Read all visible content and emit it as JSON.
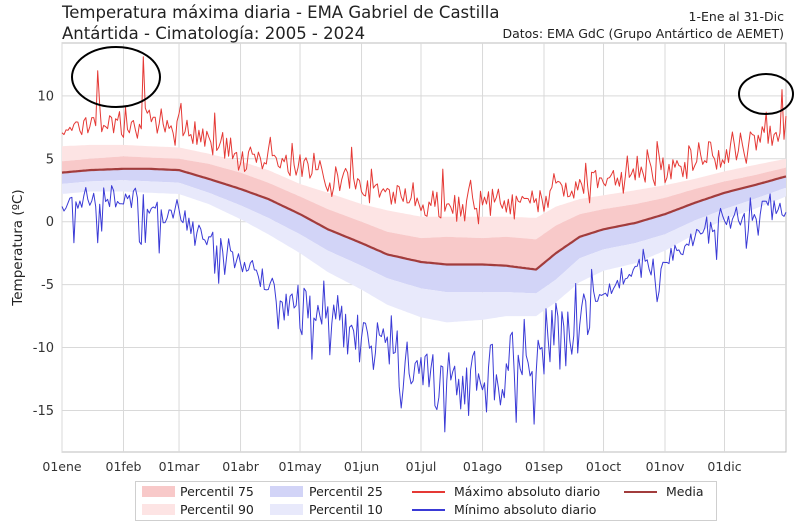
{
  "chart_data": {
    "type": "line",
    "title": "Temperatura máxima diaria - EMA Gabriel de Castilla",
    "subtitle": "Antártida - Cimatología: 2005 - 2024",
    "date_range_label": "1-Ene al 31-Dic",
    "source_label": "Datos: EMA GdC (Grupo Antártico de AEMET)",
    "ylabel": "Temperatura (ºC)",
    "xlabel": "",
    "ylim": [
      -18.3,
      14.2
    ],
    "xlim": [
      1,
      366
    ],
    "yticks": [
      -15,
      -10,
      -5,
      0,
      5,
      10
    ],
    "xtick_labels": [
      "01ene",
      "01feb",
      "01mar",
      "01abr",
      "01may",
      "01jun",
      "01jul",
      "01ago",
      "01sep",
      "01oct",
      "01nov",
      "01dic"
    ],
    "xtick_days": [
      1,
      32,
      60,
      91,
      121,
      152,
      182,
      213,
      244,
      274,
      305,
      335
    ],
    "grid": true,
    "legend_position": "bottom",
    "colors": {
      "max_line": "#e53935",
      "min_line": "#3a3ad6",
      "media_line": "#a23c3c",
      "p75_fill": "#f8c9c9",
      "p90_fill": "#fde4e4",
      "p25_fill": "#d2d4f7",
      "p10_fill": "#e8e9fb"
    },
    "legend": {
      "p75": "Percentil 75",
      "p90": "Percentil 90",
      "p25": "Percentil 25",
      "p10": "Percentil 10",
      "max": "Máximo absoluto diario",
      "min": "Mínimo absoluto diario",
      "media": "Media"
    },
    "series_anchors": {
      "day": [
        1,
        15,
        32,
        45,
        60,
        75,
        91,
        105,
        121,
        135,
        152,
        165,
        182,
        195,
        213,
        225,
        240,
        250,
        262,
        274,
        290,
        305,
        320,
        335,
        350,
        366
      ],
      "media": [
        3.9,
        4.1,
        4.2,
        4.2,
        4.1,
        3.4,
        2.6,
        1.8,
        0.6,
        -0.6,
        -1.7,
        -2.6,
        -3.2,
        -3.4,
        -3.4,
        -3.5,
        -3.8,
        -2.5,
        -1.2,
        -0.6,
        -0.1,
        0.6,
        1.5,
        2.3,
        2.9,
        3.6
      ],
      "p75": [
        4.8,
        5.0,
        5.2,
        5.1,
        5.0,
        4.6,
        3.9,
        3.1,
        2.0,
        1.0,
        0.0,
        -0.8,
        -1.3,
        -1.2,
        -1.3,
        -1.2,
        -1.4,
        -0.3,
        0.6,
        1.0,
        1.4,
        1.9,
        2.6,
        3.2,
        3.7,
        4.3
      ],
      "p90": [
        6.0,
        6.1,
        6.1,
        6.0,
        5.9,
        5.4,
        4.8,
        4.1,
        3.0,
        2.3,
        1.4,
        0.9,
        0.4,
        0.4,
        0.4,
        0.4,
        0.3,
        1.2,
        1.8,
        2.1,
        2.5,
        2.9,
        3.4,
        4.0,
        4.5,
        5.0
      ],
      "p25": [
        3.0,
        3.2,
        3.3,
        3.2,
        3.1,
        2.3,
        1.3,
        0.3,
        -1.0,
        -2.3,
        -3.5,
        -4.5,
        -5.3,
        -5.6,
        -5.6,
        -5.6,
        -5.7,
        -4.6,
        -2.9,
        -2.2,
        -1.7,
        -1.0,
        0.1,
        1.0,
        1.8,
        2.7
      ],
      "p10": [
        2.2,
        2.4,
        2.4,
        2.3,
        2.2,
        1.4,
        0.2,
        -1.0,
        -2.5,
        -4.0,
        -5.4,
        -6.6,
        -7.6,
        -8.0,
        -7.8,
        -7.5,
        -7.5,
        -6.4,
        -4.8,
        -3.9,
        -3.3,
        -2.3,
        -1.0,
        0.2,
        1.0,
        2.0
      ],
      "max": [
        7.5,
        8.0,
        7.8,
        8.0,
        7.4,
        6.4,
        5.5,
        5.2,
        4.5,
        3.6,
        3.0,
        2.2,
        1.4,
        1.2,
        1.2,
        1.4,
        1.8,
        2.6,
        2.4,
        3.5,
        3.8,
        4.4,
        5.0,
        5.4,
        6.3,
        7.0
      ],
      "min": [
        1.3,
        1.6,
        1.8,
        1.2,
        0.6,
        -1.1,
        -3.2,
        -5.2,
        -6.5,
        -7.7,
        -8.7,
        -10.2,
        -11.8,
        -12.4,
        -12.0,
        -11.5,
        -10.5,
        -9.0,
        -7.2,
        -5.8,
        -4.0,
        -3.2,
        -1.0,
        0.3,
        0.5,
        1.0
      ]
    },
    "notable_points": {
      "max_spikes": [
        {
          "day": 19,
          "value": 12.0
        },
        {
          "day": 42,
          "value": 13.1
        },
        {
          "day": 364,
          "value": 10.5
        }
      ],
      "min_extremes": [
        {
          "day": 194,
          "value": -16.7
        },
        {
          "day": 206,
          "value": -15.4
        },
        {
          "day": 110,
          "value": -8.5
        }
      ]
    }
  }
}
